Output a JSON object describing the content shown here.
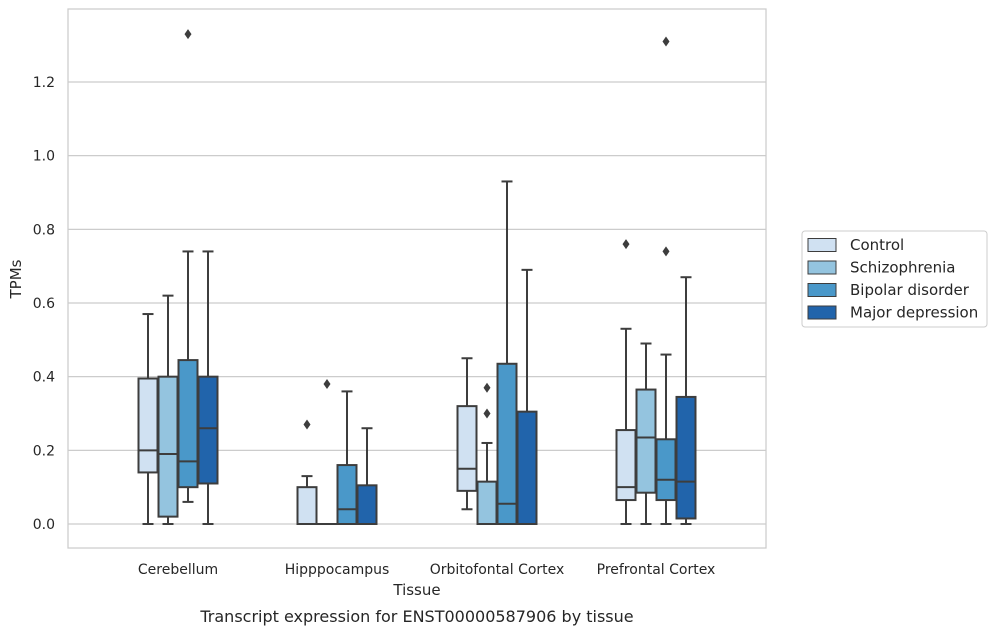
{
  "chart_data": {
    "type": "box",
    "title": "",
    "caption": "Transcript expression for ENST00000587906 by tissue",
    "xlabel": "Tissue",
    "ylabel": "TPMs",
    "ylim": [
      -0.065,
      1.4
    ],
    "yticks": [
      0.0,
      0.2,
      0.4,
      0.6,
      0.8,
      1.0,
      1.2
    ],
    "grid": "horizontal",
    "legend_position": "right",
    "categories": [
      "Cerebellum",
      "Hipppocampus",
      "Orbitofontal Cortex",
      "Prefrontal Cortex"
    ],
    "series": [
      {
        "name": "Control",
        "color": "#d0e1f2",
        "boxes": [
          {
            "whisker_low": 0.0,
            "q1": 0.14,
            "median": 0.2,
            "q3": 0.395,
            "whisker_high": 0.57,
            "outliers": []
          },
          {
            "whisker_low": 0.0,
            "q1": 0.0,
            "median": 0.0,
            "q3": 0.1,
            "whisker_high": 0.13,
            "outliers": [
              0.27
            ]
          },
          {
            "whisker_low": 0.04,
            "q1": 0.09,
            "median": 0.15,
            "q3": 0.32,
            "whisker_high": 0.45,
            "outliers": []
          },
          {
            "whisker_low": 0.0,
            "q1": 0.065,
            "median": 0.1,
            "q3": 0.255,
            "whisker_high": 0.53,
            "outliers": [
              0.76
            ]
          }
        ]
      },
      {
        "name": "Schizophrenia",
        "color": "#94c4df",
        "boxes": [
          {
            "whisker_low": 0.0,
            "q1": 0.02,
            "median": 0.19,
            "q3": 0.4,
            "whisker_high": 0.62,
            "outliers": []
          },
          {
            "whisker_low": 0.0,
            "q1": 0.0,
            "median": 0.0,
            "q3": 0.0,
            "whisker_high": 0.0,
            "outliers": [
              0.38
            ]
          },
          {
            "whisker_low": 0.0,
            "q1": 0.0,
            "median": 0.0,
            "q3": 0.115,
            "whisker_high": 0.22,
            "outliers": [
              0.3,
              0.37
            ]
          },
          {
            "whisker_low": 0.0,
            "q1": 0.085,
            "median": 0.235,
            "q3": 0.365,
            "whisker_high": 0.49,
            "outliers": []
          }
        ]
      },
      {
        "name": "Bipolar disorder",
        "color": "#4a98c9",
        "boxes": [
          {
            "whisker_low": 0.06,
            "q1": 0.1,
            "median": 0.17,
            "q3": 0.445,
            "whisker_high": 0.74,
            "outliers": [
              1.33
            ]
          },
          {
            "whisker_low": 0.0,
            "q1": 0.0,
            "median": 0.04,
            "q3": 0.16,
            "whisker_high": 0.36,
            "outliers": []
          },
          {
            "whisker_low": 0.0,
            "q1": 0.0,
            "median": 0.055,
            "q3": 0.435,
            "whisker_high": 0.93,
            "outliers": []
          },
          {
            "whisker_low": 0.0,
            "q1": 0.065,
            "median": 0.12,
            "q3": 0.23,
            "whisker_high": 0.46,
            "outliers": [
              0.74,
              1.31
            ]
          }
        ]
      },
      {
        "name": "Major depression",
        "color": "#2164ab",
        "boxes": [
          {
            "whisker_low": 0.0,
            "q1": 0.11,
            "median": 0.26,
            "q3": 0.4,
            "whisker_high": 0.74,
            "outliers": []
          },
          {
            "whisker_low": 0.0,
            "q1": 0.0,
            "median": 0.0,
            "q3": 0.105,
            "whisker_high": 0.26,
            "outliers": []
          },
          {
            "whisker_low": 0.0,
            "q1": 0.0,
            "median": 0.0,
            "q3": 0.305,
            "whisker_high": 0.69,
            "outliers": []
          },
          {
            "whisker_low": 0.0,
            "q1": 0.015,
            "median": 0.115,
            "q3": 0.345,
            "whisker_high": 0.67,
            "outliers": []
          }
        ]
      }
    ]
  }
}
